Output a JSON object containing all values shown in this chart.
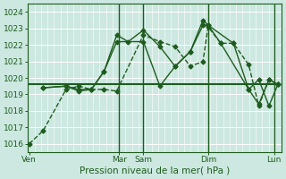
{
  "xlabel": "Pression niveau de la mer( hPa )",
  "bg_color": "#cce8e0",
  "grid_color": "#ffffff",
  "line_color": "#1e5c1e",
  "ylim": [
    1015.5,
    1024.5
  ],
  "yticks": [
    1016,
    1017,
    1018,
    1019,
    1020,
    1021,
    1022,
    1023,
    1024
  ],
  "xlim": [
    0,
    10.0
  ],
  "xtick_positions": [
    0.05,
    3.6,
    4.55,
    7.1,
    9.7
  ],
  "xtick_labels": [
    "Ven",
    "Mar",
    "Sam",
    "Dim",
    "Lun"
  ],
  "vline_positions": [
    3.6,
    4.55,
    7.1,
    9.7
  ],
  "lines": [
    {
      "x": [
        0.05,
        0.6,
        1.5,
        2.0,
        2.5,
        3.0,
        3.5,
        4.55,
        5.2,
        5.8,
        6.4,
        6.9,
        7.1,
        7.6,
        8.1,
        8.7,
        9.1,
        9.5,
        9.85
      ],
      "y": [
        1016.0,
        1016.8,
        1019.3,
        1019.5,
        1019.3,
        1019.3,
        1019.2,
        1022.6,
        1022.2,
        1021.9,
        1020.7,
        1021.0,
        1023.1,
        1022.1,
        1022.1,
        1020.8,
        1018.3,
        1019.9,
        1019.6
      ],
      "marker": "D",
      "ms": 2.5,
      "lw": 1.0,
      "ls": "--"
    },
    {
      "x": [
        0.6,
        1.5,
        2.0,
        2.5,
        3.0,
        3.5,
        3.95,
        4.55,
        5.2,
        5.8,
        6.4,
        6.9,
        7.1,
        7.6,
        8.7,
        9.1,
        9.5,
        9.85
      ],
      "y": [
        1019.4,
        1019.5,
        1019.2,
        1019.3,
        1020.4,
        1022.6,
        1022.2,
        1022.9,
        1021.9,
        1020.7,
        1021.6,
        1023.5,
        1023.2,
        1022.1,
        1019.3,
        1018.4,
        1019.9,
        1019.6
      ],
      "marker": "D",
      "ms": 2.5,
      "lw": 1.0,
      "ls": "-"
    },
    {
      "x": [
        0.6,
        1.5,
        2.0,
        2.5,
        3.0,
        3.5,
        4.55,
        5.2,
        5.8,
        6.4,
        6.9,
        7.1,
        8.1,
        8.7,
        9.1,
        9.5,
        9.85
      ],
      "y": [
        1019.4,
        1019.5,
        1019.3,
        1019.3,
        1020.4,
        1022.2,
        1022.2,
        1019.5,
        1020.7,
        1021.6,
        1023.2,
        1023.2,
        1022.1,
        1019.3,
        1019.9,
        1018.3,
        1019.6
      ],
      "marker": "D",
      "ms": 2.5,
      "lw": 1.0,
      "ls": "-"
    },
    {
      "x": [
        0.05,
        9.85
      ],
      "y": [
        1019.6,
        1019.6
      ],
      "marker": null,
      "ms": 0,
      "lw": 1.5,
      "ls": "-"
    }
  ]
}
